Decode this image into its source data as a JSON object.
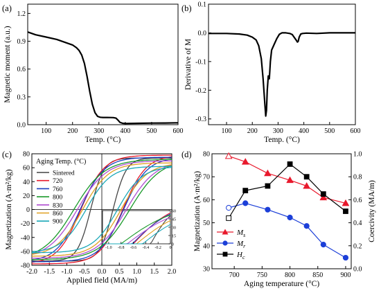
{
  "chart_data": [
    {
      "panel": "(a)",
      "type": "line",
      "xlabel": "Temp. (°C)",
      "ylabel": "Magnetic moment (a.u.)",
      "xlim": [
        30,
        600
      ],
      "ylim": [
        0,
        1.3
      ],
      "xticks": [
        100,
        200,
        300,
        400,
        500,
        600
      ],
      "yticks": [
        0.0,
        0.3,
        0.6,
        0.9,
        1.2
      ],
      "ytick_labels": [
        "0.0",
        "0.3",
        "0.6",
        "0.9",
        "1.2"
      ],
      "series": [
        {
          "x": [
            30,
            60,
            100,
            140,
            170,
            200,
            215,
            225,
            235,
            245,
            255,
            265,
            275,
            285,
            295,
            305,
            315,
            330,
            345,
            355,
            365,
            372,
            380,
            390,
            400,
            450,
            500,
            550,
            600
          ],
          "y": [
            1.0,
            0.97,
            0.945,
            0.92,
            0.89,
            0.86,
            0.83,
            0.8,
            0.75,
            0.66,
            0.52,
            0.36,
            0.22,
            0.13,
            0.09,
            0.08,
            0.078,
            0.078,
            0.077,
            0.076,
            0.07,
            0.05,
            0.025,
            0.015,
            0.013,
            0.015,
            0.017,
            0.018,
            0.02
          ]
        }
      ]
    },
    {
      "panel": "(b)",
      "type": "line",
      "xlabel": "Temp. (°C)",
      "ylabel": "Derivative of M",
      "xlim": [
        30,
        600
      ],
      "ylim": [
        -0.32,
        0.1
      ],
      "xticks": [
        100,
        200,
        300,
        400,
        500,
        600
      ],
      "yticks": [
        0.1,
        0.0,
        -0.1,
        -0.2,
        -0.3
      ],
      "ytick_labels": [
        "0.1",
        "0.0",
        "-0.1",
        "-0.2",
        "-0.3"
      ],
      "series": [
        {
          "x": [
            30,
            100,
            150,
            180,
            200,
            215,
            225,
            235,
            242,
            248,
            252,
            255,
            258,
            262,
            266,
            270,
            275,
            285,
            295,
            305,
            315,
            330,
            345,
            355,
            362,
            370,
            375,
            378,
            382,
            388,
            395,
            410,
            450,
            500,
            550,
            600
          ],
          "y": [
            -0.002,
            -0.002,
            -0.004,
            -0.008,
            -0.015,
            -0.025,
            -0.045,
            -0.09,
            -0.16,
            -0.24,
            -0.29,
            -0.27,
            -0.2,
            -0.15,
            -0.16,
            -0.1,
            -0.06,
            -0.04,
            -0.02,
            -0.005,
            0.0,
            0.0,
            -0.002,
            -0.006,
            -0.015,
            -0.025,
            -0.032,
            -0.03,
            -0.015,
            -0.004,
            -0.002,
            -0.001,
            -0.002,
            0.0,
            0.0,
            0.0
          ]
        }
      ]
    },
    {
      "panel": "(c)",
      "type": "line",
      "xlabel": "Applied field (MA/m)",
      "ylabel": "Magnetization (A·m²/kg)",
      "xlim": [
        -2.0,
        2.0
      ],
      "ylim": [
        -80,
        80
      ],
      "xticks": [
        -2.0,
        -1.5,
        -1.0,
        -0.5,
        0.0,
        0.5,
        1.0,
        1.5,
        2.0
      ],
      "xtick_labels": [
        "-2.0",
        "-1.5",
        "-1.0",
        "-0.5",
        "0.0",
        "0.5",
        "1.0",
        "1.5",
        "2.0"
      ],
      "yticks": [
        -80,
        -60,
        -40,
        -20,
        0,
        20,
        40,
        60,
        80
      ],
      "legend_title": "Aging Temp. (°C)",
      "series": [
        {
          "name": "Sintered",
          "color": "#444444",
          "Ms": 74,
          "Mr": 51,
          "Hc": 0.32
        },
        {
          "name": "720",
          "color": "#e8192c",
          "Ms": 78,
          "Mr": 56,
          "Hc": 0.6
        },
        {
          "name": "760",
          "color": "#1c3fbf",
          "Ms": 75,
          "Mr": 54,
          "Hc": 0.62
        },
        {
          "name": "800",
          "color": "#1a9a2a",
          "Ms": 72,
          "Mr": 52,
          "Hc": 0.8
        },
        {
          "name": "830",
          "color": "#b04cd0",
          "Ms": 70,
          "Mr": 48,
          "Hc": 0.7
        },
        {
          "name": "860",
          "color": "#e0a020",
          "Ms": 67,
          "Mr": 42,
          "Hc": 0.55
        },
        {
          "name": "900",
          "color": "#1aa8b8",
          "Ms": 62,
          "Mr": 35,
          "Hc": 0.45
        }
      ],
      "inset": {
        "xlim": [
          -1.1,
          0
        ],
        "ylim": [
          0,
          60
        ],
        "xticks": [
          -1.0,
          -0.8,
          -0.6,
          -0.4,
          -0.2,
          0
        ],
        "xtick_labels": [
          "-1.0",
          "-0.8",
          "-0.6",
          "-0.4",
          "-0.2",
          "0"
        ],
        "yticks": [
          0,
          15,
          30,
          45,
          60
        ]
      }
    },
    {
      "panel": "(d)",
      "type": "line",
      "xlabel": "Aging temperature (°C)",
      "ylabel": "Magnetization (A·m²/kg)",
      "ylabel_right": "Coercivity (MA/m)",
      "xlim": [
        660,
        910
      ],
      "ylim": [
        30,
        80
      ],
      "ylim_right": [
        0.0,
        1.0
      ],
      "xticks": [
        700,
        750,
        800,
        850,
        900
      ],
      "yticks": [
        30,
        40,
        50,
        60,
        70,
        80
      ],
      "yticks_right": [
        0.0,
        0.2,
        0.4,
        0.6,
        0.8,
        1.0
      ],
      "ytick_labels_right": [
        "0.0",
        "0.2",
        "0.4",
        "0.6",
        "0.8",
        "1.0"
      ],
      "series": [
        {
          "name": "Ms",
          "color": "#e8192c",
          "marker": "triangle",
          "axis": "left",
          "x": [
            690,
            720,
            760,
            800,
            830,
            860,
            900
          ],
          "y": [
            79,
            76.5,
            71.5,
            68.5,
            66,
            61,
            58.5
          ]
        },
        {
          "name": "Mr",
          "color": "#1c3fd8",
          "marker": "circle",
          "axis": "left",
          "x": [
            690,
            720,
            760,
            800,
            830,
            860,
            900
          ],
          "y": [
            56.5,
            58.5,
            55.7,
            52.3,
            48.6,
            40.5,
            34.8
          ]
        },
        {
          "name": "Hc",
          "color": "#000000",
          "marker": "square",
          "axis": "right",
          "x": [
            690,
            720,
            760,
            800,
            830,
            860,
            900
          ],
          "y": [
            0.44,
            0.68,
            0.72,
            0.91,
            0.8,
            0.65,
            0.5
          ]
        }
      ]
    }
  ]
}
